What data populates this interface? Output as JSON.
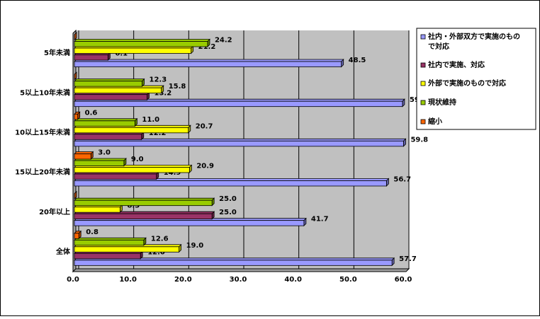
{
  "chart_data": {
    "type": "bar",
    "orientation": "horizontal",
    "categories": [
      "5年未満",
      "5以上10年未満",
      "10以上15年未満",
      "15以上20年未満",
      "20年以上",
      "全体"
    ],
    "series": [
      {
        "name": "社内・外部双方で実施のもので対応",
        "color": "#9999ff",
        "values": [
          48.5,
          59.6,
          59.8,
          56.7,
          41.7,
          57.7
        ]
      },
      {
        "name": "社内で実施、対応",
        "color": "#993366",
        "values": [
          6.1,
          13.2,
          12.2,
          14.9,
          25.0,
          12.0
        ],
        "value_labels": [
          "6.1",
          "13.2",
          "12.2",
          "14.9",
          "25.0",
          "12.0"
        ]
      },
      {
        "name": "外部で実施のもので対応",
        "color": "#ffff00",
        "values": [
          21.2,
          15.8,
          20.7,
          20.9,
          8.3,
          19.0
        ],
        "value_labels": [
          "21.2",
          "15.8",
          "20.7",
          "20.9",
          "8.3",
          "19.0"
        ]
      },
      {
        "name": "現状維持",
        "color": "#99cc00",
        "values": [
          24.2,
          12.3,
          11.0,
          9.0,
          25.0,
          12.6
        ],
        "value_labels": [
          "24.2",
          "12.3",
          "11.0",
          "9.0",
          "25.0",
          "12.6"
        ]
      },
      {
        "name": "縮小",
        "color": "#ff6600",
        "values": [
          0,
          0,
          0.6,
          3.0,
          0,
          0.8
        ],
        "value_labels": [
          null,
          null,
          "0.6",
          "3.0",
          null,
          "0.8"
        ]
      }
    ],
    "xlim": [
      0,
      60
    ],
    "xticks": [
      {
        "value": 0,
        "label": "0.0"
      },
      {
        "value": 10,
        "label": "10.0"
      },
      {
        "value": 20,
        "label": "20.0"
      },
      {
        "value": 30,
        "label": "30.0"
      },
      {
        "value": 40,
        "label": "40.0"
      },
      {
        "value": 50,
        "label": "50.0"
      },
      {
        "value": 60,
        "label": "60.0"
      }
    ],
    "grid": true,
    "legend": "right"
  }
}
